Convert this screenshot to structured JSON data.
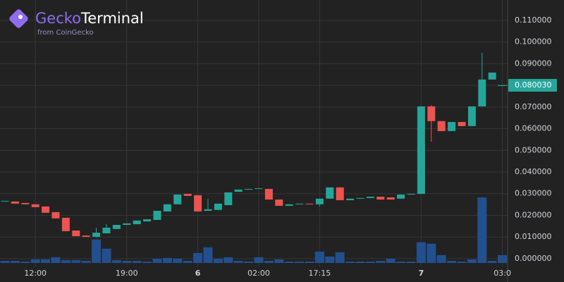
{
  "header": {
    "logo_brand": "Gecko",
    "logo_product": "Terminal",
    "logo_sub": "from CoinGecko"
  },
  "chart_data": {
    "type": "candlestick",
    "categories": [
      null,
      null,
      null,
      "12:00",
      null,
      null,
      null,
      null,
      null,
      null,
      null,
      null,
      "19:00",
      null,
      null,
      null,
      null,
      null,
      null,
      "6",
      null,
      null,
      null,
      null,
      null,
      "02:00",
      null,
      null,
      null,
      null,
      null,
      "17:15",
      null,
      null,
      null,
      null,
      null,
      null,
      null,
      null,
      null,
      "7",
      null,
      null,
      null,
      null,
      null,
      null,
      null,
      "03:0"
    ],
    "open": [
      0.0267,
      0.0264,
      0.0257,
      0.0251,
      0.0241,
      0.0215,
      0.0189,
      0.013,
      0.0107,
      0.0101,
      0.0117,
      0.0137,
      0.0156,
      0.0159,
      0.0172,
      0.0179,
      0.0218,
      0.0251,
      0.0299,
      0.0293,
      0.0221,
      0.0225,
      0.0247,
      0.0309,
      0.0319,
      0.0322,
      0.0322,
      0.0273,
      0.0244,
      0.0251,
      0.0254,
      0.0251,
      0.0277,
      0.0329,
      0.027,
      0.0277,
      0.028,
      0.0286,
      0.0283,
      0.0277,
      0.0296,
      0.0299,
      0.0703,
      0.0635,
      0.0589,
      0.0631,
      0.0612,
      0.0703,
      0.0827,
      0.08
    ],
    "high": [
      0.0267,
      0.0264,
      0.0257,
      0.0251,
      0.0241,
      0.0215,
      0.0189,
      0.013,
      0.0107,
      0.0143,
      0.0159,
      0.0156,
      0.0163,
      0.0176,
      0.0182,
      0.0221,
      0.0251,
      0.0296,
      0.0299,
      0.0293,
      0.0277,
      0.0254,
      0.0306,
      0.0319,
      0.0322,
      0.0325,
      0.0322,
      0.0273,
      0.0251,
      0.0254,
      0.0254,
      0.0277,
      0.0329,
      0.0329,
      0.0277,
      0.028,
      0.0286,
      0.0286,
      0.0283,
      0.0296,
      0.0299,
      0.0703,
      0.0709,
      0.0635,
      0.0631,
      0.0631,
      0.0703,
      0.095,
      0.0859,
      0.08003
    ],
    "low": [
      0.0267,
      0.0254,
      0.0251,
      0.0238,
      0.0212,
      0.0186,
      0.0127,
      0.0104,
      0.0101,
      0.0098,
      0.0117,
      0.0137,
      0.0156,
      0.0159,
      0.0172,
      0.0179,
      0.0218,
      0.0251,
      0.029,
      0.0218,
      0.0221,
      0.0225,
      0.0247,
      0.0309,
      0.0319,
      0.0322,
      0.0273,
      0.0244,
      0.0244,
      0.0251,
      0.0251,
      0.0241,
      0.0277,
      0.027,
      0.027,
      0.0277,
      0.028,
      0.0273,
      0.0273,
      0.0277,
      0.0296,
      0.0299,
      0.054,
      0.0589,
      0.0589,
      0.0612,
      0.0612,
      0.0703,
      0.0827,
      0.08
    ],
    "close": [
      0.0267,
      0.0254,
      0.0251,
      0.0238,
      0.0212,
      0.0186,
      0.0127,
      0.0104,
      0.0101,
      0.012,
      0.0143,
      0.0156,
      0.0163,
      0.0176,
      0.0182,
      0.0221,
      0.0251,
      0.0296,
      0.029,
      0.0218,
      0.0228,
      0.0254,
      0.0306,
      0.0319,
      0.0322,
      0.0325,
      0.0273,
      0.0244,
      0.0251,
      0.0254,
      0.0251,
      0.0277,
      0.0329,
      0.027,
      0.0277,
      0.028,
      0.0286,
      0.0273,
      0.0273,
      0.0296,
      0.0299,
      0.0703,
      0.0635,
      0.0589,
      0.0631,
      0.0612,
      0.0703,
      0.0827,
      0.0859,
      0.08003
    ],
    "volume": [
      3,
      3,
      2,
      5,
      5,
      8,
      4,
      4,
      3,
      33,
      20,
      4,
      3,
      3,
      2,
      6,
      7,
      6,
      3,
      14,
      22,
      6,
      8,
      3,
      2,
      8,
      3,
      5,
      2,
      2,
      2,
      16,
      9,
      15,
      2,
      2,
      2,
      3,
      6,
      2,
      2,
      29,
      27,
      11,
      3,
      2,
      5,
      92,
      3,
      11
    ],
    "up_color": "#26a69a",
    "down_color": "#ef5350",
    "volume_color": "#22508f",
    "ylim": [
      -0.0036,
      0.1194
    ],
    "yticks": [
      {
        "value": 0,
        "label": "0.000000"
      },
      {
        "value": 0.01,
        "label": "0.010000"
      },
      {
        "value": 0.02,
        "label": "0.020000"
      },
      {
        "value": 0.03,
        "label": "0.030000"
      },
      {
        "value": 0.04,
        "label": "0.040000"
      },
      {
        "value": 0.05,
        "label": "0.050000"
      },
      {
        "value": 0.06,
        "label": "0.060000"
      },
      {
        "value": 0.07,
        "label": "0.070000"
      },
      {
        "value": 0.08,
        "label": "0.080000"
      },
      {
        "value": 0.09,
        "label": "0.090000"
      },
      {
        "value": 0.1,
        "label": "0.100000"
      },
      {
        "value": 0.11,
        "label": "0.110000"
      }
    ],
    "last_price": {
      "value": 0.08003,
      "label": "0.080030"
    },
    "grid": true
  }
}
